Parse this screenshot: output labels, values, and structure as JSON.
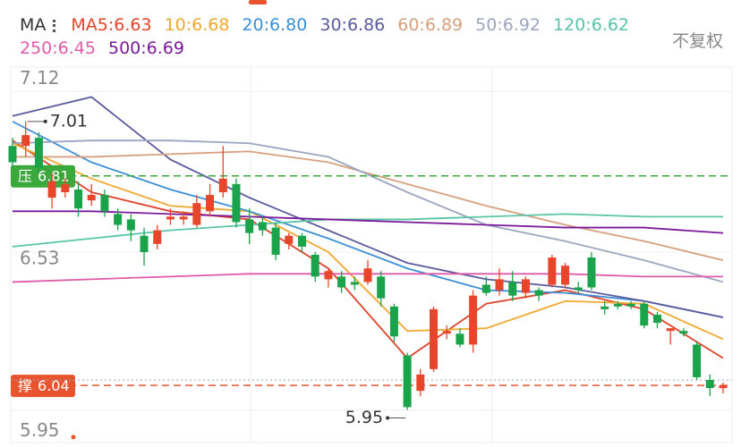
{
  "chart_data": {
    "type": "candlestick",
    "legend_title": "MA",
    "adjust_label": "不复权",
    "ylim": [
      5.83,
      7.21
    ],
    "yticks": [
      7.12,
      6.53,
      5.95
    ],
    "grid": true,
    "up_color": "#e8462a",
    "down_color": "#1aa34a",
    "open": [
      6.92,
      6.92,
      6.95,
      6.73,
      6.75,
      6.76,
      6.72,
      6.74,
      6.67,
      6.65,
      6.59,
      6.56,
      6.65,
      6.65,
      6.63,
      6.68,
      6.75,
      6.78,
      6.65,
      6.64,
      6.62,
      6.56,
      6.59,
      6.52,
      6.43,
      6.44,
      6.42,
      6.42,
      6.44,
      6.33,
      6.15,
      6.02,
      6.1,
      6.23,
      6.23,
      6.19,
      6.41,
      6.39,
      6.42,
      6.38,
      6.39,
      6.41,
      6.41,
      6.4,
      6.51,
      6.33,
      6.34,
      6.34,
      6.34,
      6.3,
      6.24,
      6.24,
      6.19,
      6.06,
      6.03
    ],
    "high": [
      6.95,
      7.01,
      6.97,
      6.82,
      6.8,
      6.79,
      6.78,
      6.76,
      6.69,
      6.67,
      6.62,
      6.63,
      6.69,
      6.68,
      6.74,
      6.78,
      6.92,
      6.8,
      6.69,
      6.66,
      6.64,
      6.6,
      6.6,
      6.53,
      6.47,
      6.46,
      6.44,
      6.5,
      6.46,
      6.34,
      6.16,
      6.1,
      6.33,
      6.26,
      6.25,
      6.39,
      6.44,
      6.47,
      6.46,
      6.44,
      6.4,
      6.52,
      6.49,
      6.42,
      6.53,
      6.35,
      6.35,
      6.35,
      6.35,
      6.31,
      6.25,
      6.25,
      6.2,
      6.08,
      6.05
    ],
    "low": [
      6.84,
      6.88,
      6.82,
      6.69,
      6.73,
      6.66,
      6.7,
      6.66,
      6.61,
      6.57,
      6.48,
      6.54,
      6.63,
      6.63,
      6.62,
      6.66,
      6.73,
      6.62,
      6.56,
      6.59,
      6.5,
      6.54,
      6.53,
      6.42,
      6.4,
      6.38,
      6.39,
      6.41,
      6.33,
      6.2,
      5.95,
      6.0,
      6.09,
      6.21,
      6.18,
      6.16,
      6.37,
      6.37,
      6.35,
      6.36,
      6.35,
      6.4,
      6.4,
      6.38,
      6.39,
      6.3,
      6.32,
      6.32,
      6.25,
      6.25,
      6.19,
      6.22,
      6.06,
      6.0,
      6.01
    ],
    "close": [
      6.86,
      6.96,
      6.84,
      6.79,
      6.78,
      6.69,
      6.74,
      6.68,
      6.63,
      6.61,
      6.53,
      6.61,
      6.66,
      6.66,
      6.71,
      6.74,
      6.8,
      6.64,
      6.6,
      6.61,
      6.52,
      6.59,
      6.55,
      6.44,
      6.46,
      6.4,
      6.41,
      6.47,
      6.36,
      6.22,
      5.96,
      6.08,
      6.32,
      6.24,
      6.19,
      6.37,
      6.38,
      6.43,
      6.37,
      6.43,
      6.37,
      6.51,
      6.48,
      6.39,
      6.4,
      6.32,
      6.33,
      6.33,
      6.26,
      6.27,
      6.25,
      6.23,
      6.07,
      6.03,
      6.04
    ],
    "high_mark_index": 1,
    "low_mark_index": 30,
    "resistance": {
      "tag": "压",
      "value": 6.81,
      "color": "#3aa83a"
    },
    "support": {
      "tag": "撑",
      "value": 6.04,
      "color": "#e8542e"
    },
    "ma_x": [
      0,
      6,
      12,
      18,
      24,
      30,
      36,
      42,
      48,
      54
    ],
    "series": [
      {
        "name": "MA5:6.63",
        "color": "#e0442a",
        "values": [
          6.94,
          6.75,
          6.68,
          6.65,
          6.47,
          6.14,
          6.34,
          6.39,
          6.32,
          6.14
        ]
      },
      {
        "name": "10:6.68",
        "color": "#f0a830",
        "values": [
          6.93,
          6.8,
          6.7,
          6.68,
          6.53,
          6.24,
          6.25,
          6.35,
          6.34,
          6.21
        ]
      },
      {
        "name": "20:6.80",
        "color": "#3b8fd6",
        "values": [
          7.01,
          6.86,
          6.76,
          6.68,
          6.58,
          6.47,
          6.39,
          6.38,
          6.35,
          6.29
        ]
      },
      {
        "name": "30:6.86",
        "color": "#5a5a9e",
        "values": [
          7.03,
          7.1,
          6.87,
          6.73,
          6.61,
          6.49,
          6.43,
          6.4,
          6.35,
          6.29
        ]
      },
      {
        "name": "60:6.89",
        "color": "#d6a07e",
        "values": [
          6.88,
          6.88,
          6.89,
          6.9,
          6.86,
          6.78,
          6.7,
          6.63,
          6.57,
          6.5
        ]
      },
      {
        "name": "50:6.92",
        "color": "#9aa5c0",
        "values": [
          6.93,
          6.94,
          6.94,
          6.93,
          6.88,
          6.75,
          6.63,
          6.57,
          6.5,
          6.42
        ]
      },
      {
        "name": "120:6.62",
        "color": "#58c4a8",
        "values": [
          6.55,
          6.58,
          6.61,
          6.63,
          6.65,
          6.65,
          6.66,
          6.67,
          6.66,
          6.66
        ]
      },
      {
        "name": "250:6.45",
        "color": "#e05aa8",
        "values": [
          6.42,
          6.43,
          6.44,
          6.45,
          6.45,
          6.45,
          6.45,
          6.45,
          6.44,
          6.44
        ]
      },
      {
        "name": "500:6.69",
        "color": "#7a1a9a",
        "values": [
          6.68,
          6.68,
          6.67,
          6.66,
          6.65,
          6.64,
          6.63,
          6.62,
          6.62,
          6.6
        ]
      }
    ]
  }
}
